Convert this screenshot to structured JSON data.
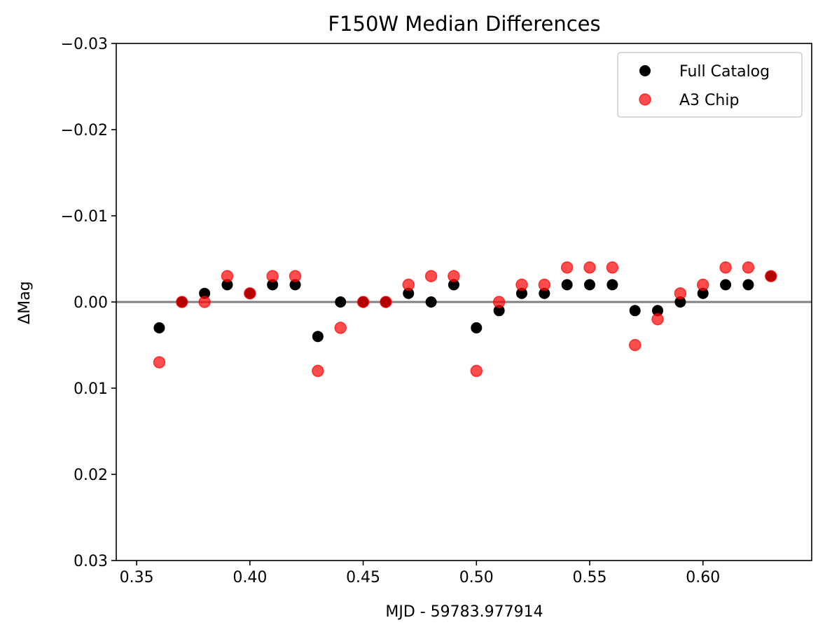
{
  "chart_data": {
    "type": "scatter",
    "title": "F150W Median Differences",
    "xlabel": "MJD - 59783.977914",
    "ylabel": "ΔMag",
    "xlim": [
      0.341,
      0.648
    ],
    "ylim": [
      0.03,
      -0.03
    ],
    "y_inverted": true,
    "grid": false,
    "legend_position": "top-right",
    "x_ticks": [
      {
        "value": 0.35,
        "label": "0.35"
      },
      {
        "value": 0.4,
        "label": "0.40"
      },
      {
        "value": 0.45,
        "label": "0.45"
      },
      {
        "value": 0.5,
        "label": "0.50"
      },
      {
        "value": 0.55,
        "label": "0.55"
      },
      {
        "value": 0.6,
        "label": "0.60"
      }
    ],
    "y_ticks": [
      {
        "value": -0.03,
        "label": "−0.03"
      },
      {
        "value": -0.02,
        "label": "−0.02"
      },
      {
        "value": -0.01,
        "label": "−0.01"
      },
      {
        "value": 0.0,
        "label": "0.00"
      },
      {
        "value": 0.01,
        "label": "0.01"
      },
      {
        "value": 0.02,
        "label": "0.02"
      },
      {
        "value": 0.03,
        "label": "0.03"
      }
    ],
    "reference_line": {
      "y": 0.0,
      "color": "#808080"
    },
    "series": [
      {
        "name": "Full Catalog",
        "color": "#000000",
        "opacity": 1.0,
        "x": [
          0.36,
          0.37,
          0.38,
          0.39,
          0.4,
          0.41,
          0.42,
          0.43,
          0.44,
          0.45,
          0.46,
          0.47,
          0.48,
          0.49,
          0.5,
          0.51,
          0.52,
          0.53,
          0.54,
          0.55,
          0.56,
          0.57,
          0.58,
          0.59,
          0.6,
          0.61,
          0.62,
          0.63
        ],
        "y": [
          0.003,
          0.0,
          -0.001,
          -0.002,
          -0.001,
          -0.002,
          -0.002,
          0.004,
          0.0,
          0.0,
          0.0,
          -0.001,
          0.0,
          -0.002,
          0.003,
          0.001,
          -0.001,
          -0.001,
          -0.002,
          -0.002,
          -0.002,
          0.001,
          0.001,
          0.0,
          -0.001,
          -0.002,
          -0.002,
          -0.003
        ]
      },
      {
        "name": "A3 Chip",
        "color": "#ff0000",
        "opacity": 0.7,
        "x": [
          0.36,
          0.37,
          0.38,
          0.39,
          0.4,
          0.41,
          0.42,
          0.43,
          0.44,
          0.45,
          0.46,
          0.47,
          0.48,
          0.49,
          0.5,
          0.51,
          0.52,
          0.53,
          0.54,
          0.55,
          0.56,
          0.57,
          0.58,
          0.59,
          0.6,
          0.61,
          0.62,
          0.63
        ],
        "y": [
          0.007,
          0.0,
          0.0,
          -0.003,
          -0.001,
          -0.003,
          -0.003,
          0.008,
          0.003,
          0.0,
          0.0,
          -0.002,
          -0.003,
          -0.003,
          0.008,
          0.0,
          -0.002,
          -0.002,
          -0.004,
          -0.004,
          -0.004,
          0.005,
          0.002,
          -0.001,
          -0.002,
          -0.004,
          -0.004,
          -0.003
        ]
      }
    ]
  }
}
